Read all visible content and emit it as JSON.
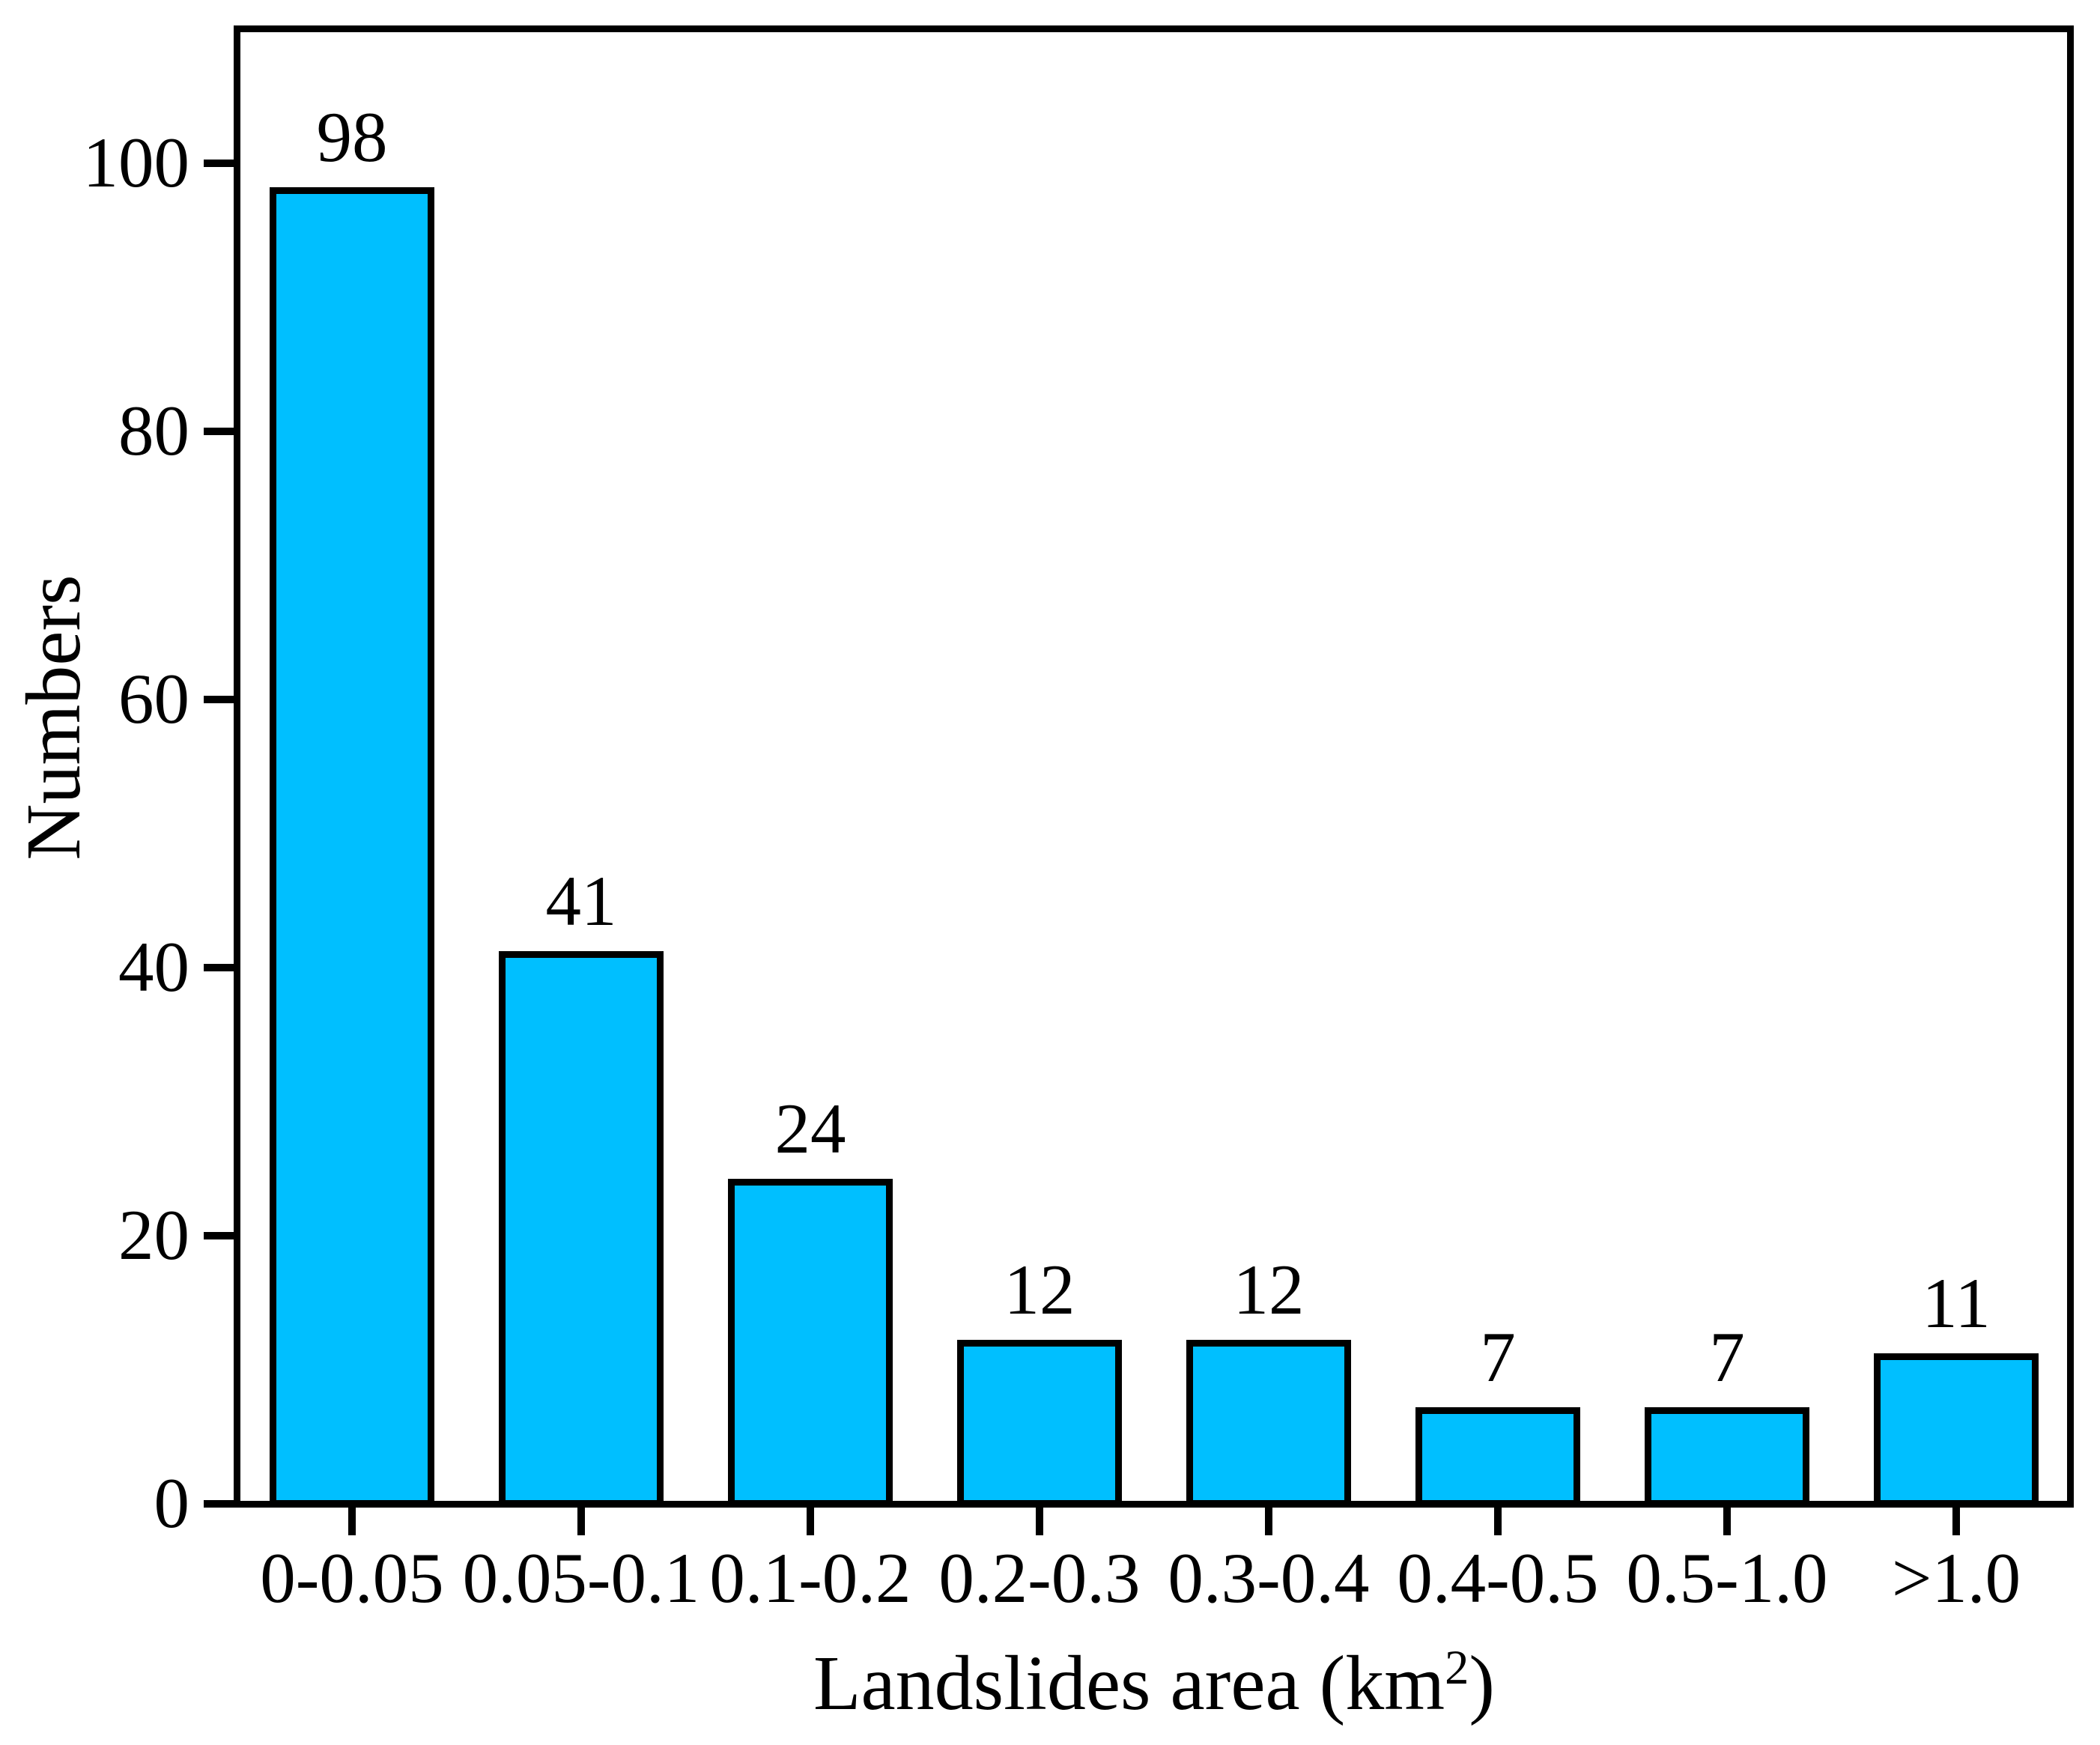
{
  "chart_data": {
    "type": "bar",
    "title": "",
    "categories": [
      "0-0.05",
      "0.05-0.1",
      "0.1-0.2",
      "0.2-0.3",
      "0.3-0.4",
      "0.4-0.5",
      "0.5-1.0",
      ">1.0"
    ],
    "values": [
      98,
      41,
      24,
      12,
      12,
      7,
      7,
      11
    ],
    "bar_labels": [
      "98",
      "41",
      "24",
      "12",
      "12",
      "7",
      "7",
      "11"
    ],
    "xlabel": "Landslides area (km²)",
    "xlabel_base": "Landslides area (km",
    "xlabel_superscript": "2",
    "xlabel_close": ")",
    "ylabel": "Numbers",
    "yticks": [
      0,
      20,
      40,
      60,
      80,
      100
    ],
    "y_tick_labels": [
      "0",
      "20",
      "40",
      "60",
      "80",
      "100"
    ],
    "ylim": [
      0,
      110
    ],
    "grid": false,
    "legend": null,
    "bar_color": "#00BFFF",
    "bar_edge_color": "#000000",
    "axis_color": "#000000",
    "background_color": "#FFFFFF"
  }
}
